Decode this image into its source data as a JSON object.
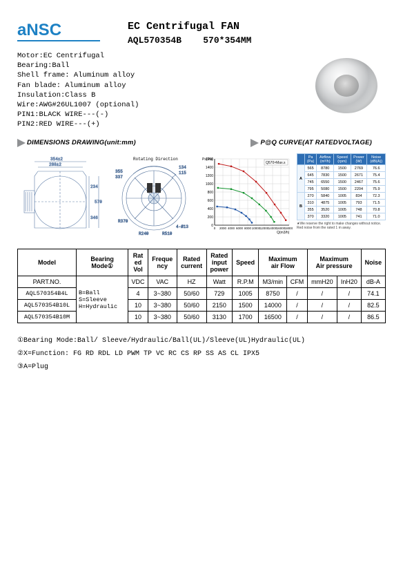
{
  "logo_text": "aNSC",
  "title1": "EC Centrifugal FAN",
  "title2_model": "AQL570354B",
  "title2_size": "570*354MM",
  "specs": {
    "l1": "Motor:EC Centrifugal",
    "l2": "Bearing:Ball",
    "l3": "Shell  frame: Aluminum alloy",
    "l4": "Fan  blade: Aluminum alloy",
    "l5": "Insulation:Class B",
    "l6": "Wire:AWG#26UL1007 (optional)",
    "l7": "PIN1:BLACK WIRE---(-)",
    "l8": "PIN2:RED WIRE---(+)"
  },
  "section_dims": "DIMENSIONS DRAWING(unit:mm)",
  "section_pq": "P@Q CURVE(AT RATEDVOLTAGE)",
  "drawing": {
    "dim_top1": "354±2",
    "dim_top2": "288±2",
    "dim_side1": "234",
    "dim_side2": "570",
    "dim_side3": "346",
    "rotating": "Rotating Direction",
    "markR370": "R370",
    "markR510": "R510",
    "markR240": "R240",
    "markPhi13": "4-Ø13",
    "markDim1": "134",
    "markDim2": "115",
    "markDim3": "337",
    "markDim4": "355"
  },
  "chart": {
    "ylabel": "Ps(Pa)",
    "xlabel": "Q(m3/h)",
    "legend": "Q570×Max.s",
    "y_max": 1600,
    "y_step": 200,
    "x_max": 18000,
    "x_step": 2000,
    "series_colors": [
      "#c01818",
      "#14942f",
      "#1d54a6"
    ],
    "curves": [
      [
        [
          1000,
          1480
        ],
        [
          4000,
          1420
        ],
        [
          7000,
          1300
        ],
        [
          10000,
          1050
        ],
        [
          12500,
          780
        ],
        [
          14500,
          500
        ],
        [
          16000,
          300
        ],
        [
          17200,
          120
        ]
      ],
      [
        [
          800,
          900
        ],
        [
          4000,
          870
        ],
        [
          7000,
          780
        ],
        [
          9000,
          650
        ],
        [
          10800,
          500
        ],
        [
          12400,
          350
        ],
        [
          13600,
          200
        ],
        [
          14400,
          80
        ]
      ],
      [
        [
          600,
          450
        ],
        [
          3000,
          430
        ],
        [
          5000,
          380
        ],
        [
          6500,
          300
        ],
        [
          7600,
          220
        ],
        [
          8400,
          140
        ],
        [
          9000,
          60
        ]
      ]
    ],
    "grid_color": "#c8c8c8",
    "axis_color": "#000"
  },
  "mini": {
    "headers": [
      "Pa\n(Pa)",
      "Airflow\n(m³/h)",
      "Speed\n(rpm)",
      "Power\n(W)",
      "Noise\n(dB(A))"
    ],
    "groupA": [
      [
        "565",
        "8780",
        "1500",
        "2769",
        "76.6"
      ],
      [
        "645",
        "7830",
        "1500",
        "2671",
        "75.4"
      ],
      [
        "745",
        "6550",
        "1500",
        "2467",
        "75.6"
      ],
      [
        "795",
        "5080",
        "1500",
        "2204",
        "75.9"
      ]
    ],
    "groupB": [
      [
        "270",
        "5840",
        "1005",
        "834",
        "72.3"
      ],
      [
        "310",
        "4875",
        "1005",
        "793",
        "71.5"
      ],
      [
        "355",
        "3520",
        "1005",
        "748",
        "70.8"
      ],
      [
        "370",
        "3320",
        "1005",
        "741",
        "71.0"
      ]
    ],
    "footnote": "★We reserve the right to make changes without notice. Red noise from the rated 1 m away."
  },
  "table": {
    "h_model": "Model",
    "h_bearing": "Bearing\nMode",
    "h_bearing_sym": "①",
    "h_ratedvol": "Rat\ned\nVol",
    "h_freq": "Freque\nncy",
    "h_rcur": "Rated\ncurrent",
    "h_rpow": "Rated\ninput\npower",
    "h_speed": "Speed",
    "h_maxair": "Maximum\nair Flow",
    "h_maxp": "Maximum\nAir pressure",
    "h_noise": "Noise",
    "sub_part": "PART.NO.",
    "sub_vdc": "VDC",
    "sub_vac": "VAC",
    "sub_hz": "HZ",
    "sub_watt": "Watt",
    "sub_rpm": "R.P.M",
    "sub_m3": "M3/min",
    "sub_cfm": "CFM",
    "sub_mm": "mmH20",
    "sub_in": "InH20",
    "sub_db": "dB-A",
    "bearing_legend": "B=Ball\nS=Sleeve\nH=Hydraulic",
    "rows": [
      {
        "pn": "AQL570354B4L",
        "vdc": "4",
        "vac": "3~380",
        "hz": "50/60",
        "w": "729",
        "rpm": "1005",
        "m3": "8750",
        "cfm": "/",
        "mm": "/",
        "in": "/",
        "db": "74.1"
      },
      {
        "pn": "AQL570354B10L",
        "vdc": "10",
        "vac": "3~380",
        "hz": "50/60",
        "w": "2150",
        "rpm": "1500",
        "m3": "14000",
        "cfm": "/",
        "mm": "/",
        "in": "/",
        "db": "82.5"
      },
      {
        "pn": "AQL570354B10M",
        "vdc": "10",
        "vac": "3~380",
        "hz": "50/60",
        "w": "3130",
        "rpm": "1700",
        "m3": "16500",
        "cfm": "/",
        "mm": "/",
        "in": "/",
        "db": "86.5"
      }
    ]
  },
  "footnotes": {
    "f1": "①Bearing Mode:Ball/ Sleeve/Hydraulic/Ball(UL)/Sleeve(UL)Hydraulic(UL)",
    "f2": "②X=Function:  FG  RD   RDL  LD   PWM   TP  VC   RC   CS   RP   SS   AS  CL  IPX5",
    "f3": "③A=Plug"
  },
  "colors": {
    "brand": "#1d81c4",
    "mini_header": "#2d6db3"
  }
}
